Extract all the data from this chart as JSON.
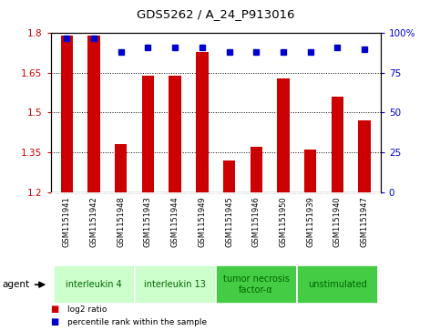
{
  "title": "GDS5262 / A_24_P913016",
  "samples": [
    "GSM1151941",
    "GSM1151942",
    "GSM1151948",
    "GSM1151943",
    "GSM1151944",
    "GSM1151949",
    "GSM1151945",
    "GSM1151946",
    "GSM1151950",
    "GSM1151939",
    "GSM1151940",
    "GSM1151947"
  ],
  "log2_values": [
    1.79,
    1.79,
    1.38,
    1.64,
    1.64,
    1.73,
    1.32,
    1.37,
    1.63,
    1.36,
    1.56,
    1.47
  ],
  "percentile_values": [
    97,
    97,
    88,
    91,
    91,
    91,
    88,
    88,
    88,
    88,
    91,
    90
  ],
  "bar_color": "#cc0000",
  "dot_color": "#0000cc",
  "ylim_left": [
    1.2,
    1.8
  ],
  "ylim_right": [
    0,
    100
  ],
  "yticks_left": [
    1.2,
    1.35,
    1.5,
    1.65,
    1.8
  ],
  "yticks_right": [
    0,
    25,
    50,
    75,
    100
  ],
  "ytick_labels_right": [
    "0",
    "25",
    "50",
    "75",
    "100%"
  ],
  "groups": [
    {
      "label": "interleukin 4",
      "start": 0,
      "end": 3,
      "color": "#ccffcc",
      "text_color": "#006600"
    },
    {
      "label": "interleukin 13",
      "start": 3,
      "end": 6,
      "color": "#ccffcc",
      "text_color": "#006600"
    },
    {
      "label": "tumor necrosis\nfactor-α",
      "start": 6,
      "end": 9,
      "color": "#44cc44",
      "text_color": "#006600"
    },
    {
      "label": "unstimulated",
      "start": 9,
      "end": 12,
      "color": "#44cc44",
      "text_color": "#006600"
    }
  ],
  "agent_label": "agent",
  "legend_items": [
    {
      "color": "#cc0000",
      "label": "log2 ratio"
    },
    {
      "color": "#0000cc",
      "label": "percentile rank within the sample"
    }
  ],
  "background_color": "#ffffff",
  "bar_width": 0.45,
  "sample_bg_color": "#c8c8c8",
  "sample_divider_color": "#ffffff"
}
